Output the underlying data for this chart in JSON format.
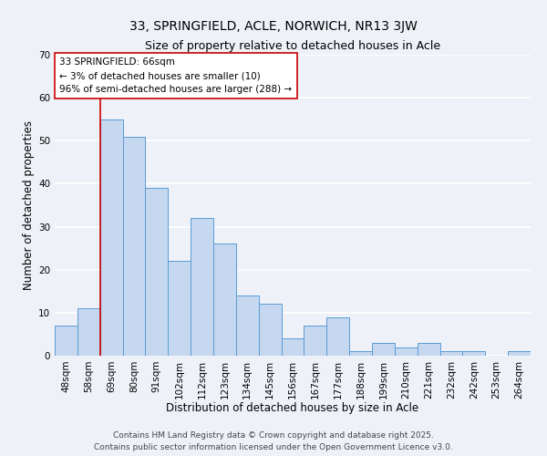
{
  "title": "33, SPRINGFIELD, ACLE, NORWICH, NR13 3JW",
  "subtitle": "Size of property relative to detached houses in Acle",
  "xlabel": "Distribution of detached houses by size in Acle",
  "ylabel": "Number of detached properties",
  "categories": [
    "48sqm",
    "58sqm",
    "69sqm",
    "80sqm",
    "91sqm",
    "102sqm",
    "112sqm",
    "123sqm",
    "134sqm",
    "145sqm",
    "156sqm",
    "167sqm",
    "177sqm",
    "188sqm",
    "199sqm",
    "210sqm",
    "221sqm",
    "232sqm",
    "242sqm",
    "253sqm",
    "264sqm"
  ],
  "values": [
    7,
    11,
    55,
    51,
    39,
    22,
    32,
    26,
    14,
    12,
    4,
    7,
    9,
    1,
    3,
    2,
    3,
    1,
    1,
    0,
    1
  ],
  "bar_color": "#c5d8f0",
  "bar_edge_color": "#5b9bd5",
  "ylim": [
    0,
    70
  ],
  "yticks": [
    0,
    10,
    20,
    30,
    40,
    50,
    60,
    70
  ],
  "property_line_color": "#cc0000",
  "annotation_title": "33 SPRINGFIELD: 66sqm",
  "annotation_line1": "← 3% of detached houses are smaller (10)",
  "annotation_line2": "96% of semi-detached houses are larger (288) →",
  "annotation_box_color": "#ffffff",
  "annotation_box_edge_color": "#cc0000",
  "footer1": "Contains HM Land Registry data © Crown copyright and database right 2025.",
  "footer2": "Contains public sector information licensed under the Open Government Licence v3.0.",
  "background_color": "#eef2f8",
  "plot_background_color": "#eef2f8",
  "grid_color": "#ffffff",
  "title_fontsize": 10,
  "subtitle_fontsize": 9,
  "xlabel_fontsize": 8.5,
  "ylabel_fontsize": 8.5,
  "tick_fontsize": 7.5,
  "annotation_fontsize": 7.5,
  "footer_fontsize": 6.5
}
